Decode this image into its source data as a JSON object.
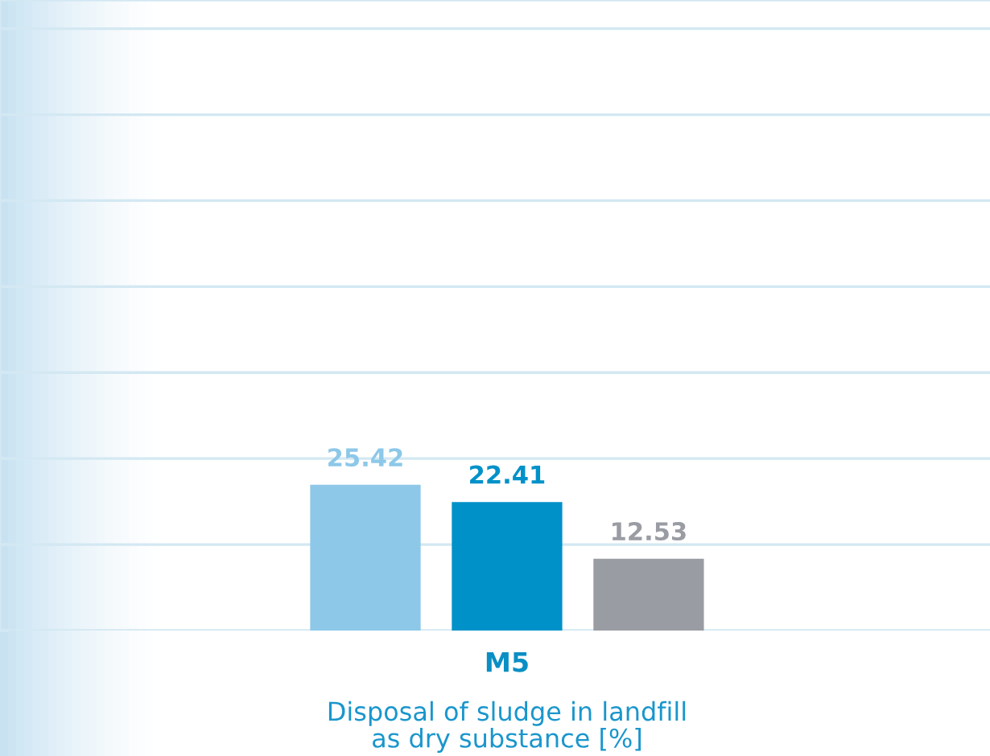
{
  "chart_data": {
    "type": "bar",
    "title": "M5",
    "xlabel": "Disposal of sludge in landfill\nas dry substance [%]",
    "categories": [
      null,
      null,
      null
    ],
    "values": [
      25.42,
      22.41,
      12.53
    ],
    "colors": [
      "#8dc8e8",
      "#0091c9",
      "#9a9ca3"
    ],
    "data_labels": true,
    "ylim": [
      0,
      110
    ],
    "yticks": [
      {
        "value": 0,
        "label": null
      },
      {
        "value": 15,
        "label": null
      },
      {
        "value": 30,
        "label": null
      },
      {
        "value": 45,
        "label": null
      },
      {
        "value": 60,
        "label": null
      },
      {
        "value": 75,
        "label": null
      },
      {
        "value": 90,
        "label": null
      },
      {
        "value": 105,
        "label": null
      }
    ],
    "grid": "y"
  }
}
